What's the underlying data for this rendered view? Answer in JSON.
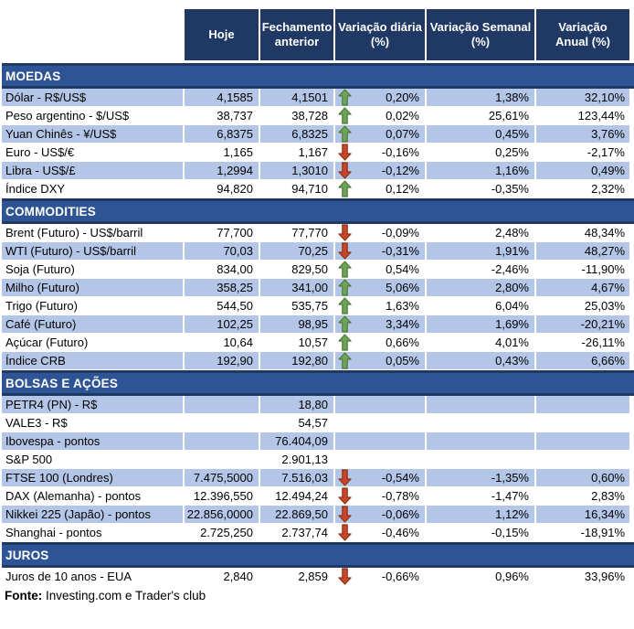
{
  "chart_data": {
    "type": "table",
    "columns": [
      "",
      "Hoje",
      "Fechamento\nanterior",
      "Variação diária\n(%)",
      "Variação Semanal\n(%)",
      "Variação\nAnual (%)"
    ],
    "sections": [
      {
        "id": "moedas",
        "title": "MOEDAS",
        "rows": [
          {
            "label": "Dólar - R$/US$",
            "hoje": "4,1585",
            "fechamento": "4,1501",
            "direction": "up",
            "var_diaria": "0,20%",
            "var_semanal": "1,38%",
            "var_anual": "32,10%",
            "shaded": true
          },
          {
            "label": "Peso argentino - $/US$",
            "hoje": "38,737",
            "fechamento": "38,728",
            "direction": "up",
            "var_diaria": "0,02%",
            "var_semanal": "25,61%",
            "var_anual": "123,44%",
            "shaded": false
          },
          {
            "label": "Yuan Chinês - ¥/US$",
            "hoje": "6,8375",
            "fechamento": "6,8325",
            "direction": "up",
            "var_diaria": "0,07%",
            "var_semanal": "0,45%",
            "var_anual": "3,76%",
            "shaded": true
          },
          {
            "label": "Euro - US$/€",
            "hoje": "1,165",
            "fechamento": "1,167",
            "direction": "down",
            "var_diaria": "-0,16%",
            "var_semanal": "0,25%",
            "var_anual": "-2,17%",
            "shaded": false
          },
          {
            "label": "Libra - US$/£",
            "hoje": "1,2994",
            "fechamento": "1,3010",
            "direction": "down",
            "var_diaria": "-0,12%",
            "var_semanal": "1,16%",
            "var_anual": "0,49%",
            "shaded": true
          },
          {
            "label": "Índice DXY",
            "hoje": "94,820",
            "fechamento": "94,710",
            "direction": "up",
            "var_diaria": "0,12%",
            "var_semanal": "-0,35%",
            "var_anual": "2,32%",
            "shaded": false
          }
        ]
      },
      {
        "id": "commodities",
        "title": "COMMODITIES",
        "rows": [
          {
            "label": "Brent (Futuro) - US$/barril",
            "hoje": "77,700",
            "fechamento": "77,770",
            "direction": "down",
            "var_diaria": "-0,09%",
            "var_semanal": "2,48%",
            "var_anual": "48,34%",
            "shaded": false
          },
          {
            "label": "WTI (Futuro) - US$/barril",
            "hoje": "70,03",
            "fechamento": "70,25",
            "direction": "down",
            "var_diaria": "-0,31%",
            "var_semanal": "1,91%",
            "var_anual": "48,27%",
            "shaded": true
          },
          {
            "label": "Soja (Futuro)",
            "hoje": "834,00",
            "fechamento": "829,50",
            "direction": "up",
            "var_diaria": "0,54%",
            "var_semanal": "-2,46%",
            "var_anual": "-11,90%",
            "shaded": false
          },
          {
            "label": "Milho (Futuro)",
            "hoje": "358,25",
            "fechamento": "341,00",
            "direction": "up",
            "var_diaria": "5,06%",
            "var_semanal": "2,80%",
            "var_anual": "4,67%",
            "shaded": true
          },
          {
            "label": "Trigo (Futuro)",
            "hoje": "544,50",
            "fechamento": "535,75",
            "direction": "up",
            "var_diaria": "1,63%",
            "var_semanal": "6,04%",
            "var_anual": "25,03%",
            "shaded": false
          },
          {
            "label": "Café (Futuro)",
            "hoje": "102,25",
            "fechamento": "98,95",
            "direction": "up",
            "var_diaria": "3,34%",
            "var_semanal": "1,69%",
            "var_anual": "-20,21%",
            "shaded": true
          },
          {
            "label": "Açúcar (Futuro)",
            "hoje": "10,64",
            "fechamento": "10,57",
            "direction": "up",
            "var_diaria": "0,66%",
            "var_semanal": "4,01%",
            "var_anual": "-26,11%",
            "shaded": false
          },
          {
            "label": "Índice CRB",
            "hoje": "192,90",
            "fechamento": "192,80",
            "direction": "up",
            "var_diaria": "0,05%",
            "var_semanal": "0,43%",
            "var_anual": "6,66%",
            "shaded": true
          }
        ]
      },
      {
        "id": "bolsas-e-acoes",
        "title": "BOLSAS E AÇÕES",
        "rows": [
          {
            "label": "PETR4 (PN) - R$",
            "hoje": "",
            "fechamento": "18,80",
            "direction": null,
            "var_diaria": "",
            "var_semanal": "",
            "var_anual": "",
            "shaded": true
          },
          {
            "label": "VALE3 - R$",
            "hoje": "",
            "fechamento": "54,57",
            "direction": null,
            "var_diaria": "",
            "var_semanal": "",
            "var_anual": "",
            "shaded": false
          },
          {
            "label": "Ibovespa - pontos",
            "hoje": "",
            "fechamento": "76.404,09",
            "direction": null,
            "var_diaria": "",
            "var_semanal": "",
            "var_anual": "",
            "shaded": true
          },
          {
            "label": "S&P 500",
            "hoje": "",
            "fechamento": "2.901,13",
            "direction": null,
            "var_diaria": "",
            "var_semanal": "",
            "var_anual": "",
            "shaded": false
          },
          {
            "label": "FTSE 100 (Londres)",
            "hoje": "7.475,5000",
            "fechamento": "7.516,03",
            "direction": "down",
            "var_diaria": "-0,54%",
            "var_semanal": "-1,35%",
            "var_anual": "0,60%",
            "shaded": true
          },
          {
            "label": "DAX (Alemanha) - pontos",
            "hoje": "12.396,550",
            "fechamento": "12.494,24",
            "direction": "down",
            "var_diaria": "-0,78%",
            "var_semanal": "-1,47%",
            "var_anual": "2,83%",
            "shaded": false
          },
          {
            "label": "Nikkei 225 (Japão) - pontos",
            "hoje": "22.856,0000",
            "fechamento": "22.869,50",
            "direction": "down",
            "var_diaria": "-0,06%",
            "var_semanal": "1,12%",
            "var_anual": "16,34%",
            "shaded": true
          },
          {
            "label": "Shanghai - pontos",
            "hoje": "2.725,250",
            "fechamento": "2.737,74",
            "direction": "down",
            "var_diaria": "-0,46%",
            "var_semanal": "-0,15%",
            "var_anual": "-18,91%",
            "shaded": false
          }
        ]
      },
      {
        "id": "juros",
        "title": "JUROS",
        "rows": [
          {
            "label": "Juros de 10 anos - EUA",
            "hoje": "2,840",
            "fechamento": "2,859",
            "direction": "down",
            "var_diaria": "-0,66%",
            "var_semanal": "0,96%",
            "var_anual": "33,96%",
            "shaded": false
          }
        ]
      }
    ]
  },
  "footer": {
    "label": "Fonte:",
    "text": " Investing.com e Trader's club"
  },
  "colors": {
    "header_bg": "#1F3864",
    "section_band_bg": "#2F5496",
    "section_band_border": "#1F3864",
    "row_shaded_bg": "#B4C6E7",
    "row_plain_bg": "#FFFFFF",
    "header_text": "#FFFFFF",
    "body_text": "#000000",
    "up_arrow_fill": "#6FA35C",
    "up_arrow_stroke": "#4E7937",
    "down_arrow_fill": "#C8472A",
    "down_arrow_stroke": "#8F3018"
  },
  "icons": {
    "up": "up-arrow-icon",
    "down": "down-arrow-icon"
  }
}
